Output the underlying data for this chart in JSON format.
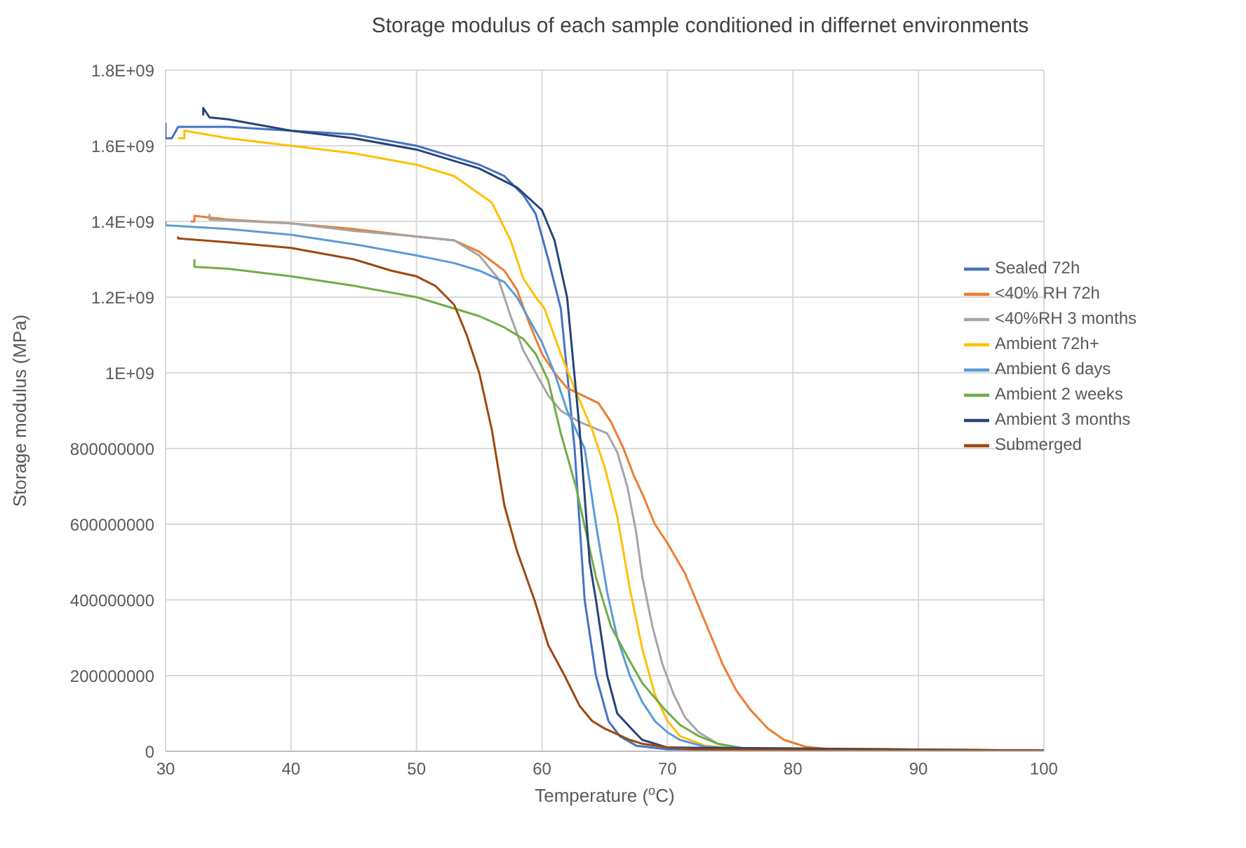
{
  "chart_data": {
    "type": "line",
    "title": "Storage modulus of each sample conditioned in differnet environments",
    "xlabel": "Temperature ($^{o}$C)",
    "ylabel": "Storage modulus (MPa)",
    "xlim": [
      30,
      100
    ],
    "xticks": [
      30,
      40,
      50,
      60,
      70,
      80,
      90,
      100
    ],
    "ylim": [
      0,
      1800000000.0
    ],
    "yticks": [
      0,
      200000000,
      400000000,
      600000000,
      800000000,
      {
        "value": 1000000000.0,
        "label": "1E+09"
      },
      {
        "value": 1200000000.0,
        "label": "1.2E+09"
      },
      {
        "value": 1400000000.0,
        "label": "1.4E+09"
      },
      {
        "value": 1600000000.0,
        "label": "1.6E+09"
      },
      {
        "value": 1800000000.0,
        "label": "1.8E+09"
      }
    ],
    "grid": true,
    "legend": "right",
    "marker": "none",
    "line_style": "solid",
    "series": [
      {
        "name": "Sealed 72h",
        "color": "#4472c4",
        "x": [
          30,
          30,
          30.5,
          31,
          35,
          40,
          45,
          50,
          55,
          57,
          58.5,
          59.5,
          60.5,
          61.5,
          62.6,
          63.4,
          64.3,
          65.3,
          66.2,
          67.5,
          70,
          100
        ],
        "values": [
          1660000000.0,
          1620000000.0,
          1620000000.0,
          1650000000.0,
          1650000000.0,
          1640000000.0,
          1630000000.0,
          1600000000.0,
          1550000000.0,
          1520000000.0,
          1470000000.0,
          1420000000.0,
          1300000000.0,
          1170000000.0,
          800000000.0,
          400000000.0,
          200000000.0,
          80000000.0,
          40000000.0,
          15000000.0,
          5000000.0,
          2000000.0
        ]
      },
      {
        "name": "<40% RH 72h",
        "color": "#ed7d31",
        "x": [
          32,
          32.3,
          32.3,
          35,
          40,
          45,
          50,
          53,
          55,
          57,
          58,
          59,
          60,
          61,
          62,
          64.5,
          65.5,
          66.5,
          67.3,
          68,
          69,
          70,
          71.4,
          72.9,
          74.4,
          75.5,
          76.6,
          78,
          79.3,
          81,
          83,
          100
        ],
        "values": [
          1400000000.0,
          1400000000.0,
          1415000000.0,
          1405000000.0,
          1395000000.0,
          1380000000.0,
          1360000000.0,
          1350000000.0,
          1320000000.0,
          1270000000.0,
          1220000000.0,
          1130000000.0,
          1050000000.0,
          1000000000.0,
          960000000.0,
          920000000.0,
          870000000.0,
          800000000.0,
          730000000.0,
          680000000.0,
          600000000.0,
          550000000.0,
          470000000.0,
          350000000.0,
          230000000.0,
          160000000.0,
          110000000.0,
          60000000.0,
          30000000.0,
          12000000.0,
          5000000.0,
          2000000.0
        ]
      },
      {
        "name": "<40%RH 3 months",
        "color": "#a5a5a5",
        "x": [
          33.5,
          33.5,
          40,
          45,
          50,
          53,
          55,
          56.5,
          57.5,
          58.5,
          59.5,
          60.5,
          61.5,
          63,
          65.2,
          66,
          66.8,
          67.5,
          68,
          68.8,
          69.6,
          70.5,
          71.4,
          72.5,
          74,
          76,
          100
        ],
        "values": [
          1420000000.0,
          1405000000.0,
          1395000000.0,
          1375000000.0,
          1360000000.0,
          1350000000.0,
          1310000000.0,
          1250000000.0,
          1150000000.0,
          1060000000.0,
          1000000000.0,
          940000000.0,
          900000000.0,
          870000000.0,
          840000000.0,
          790000000.0,
          700000000.0,
          580000000.0,
          460000000.0,
          330000000.0,
          230000000.0,
          150000000.0,
          90000000.0,
          50000000.0,
          20000000.0,
          8000000.0,
          2000000.0
        ]
      },
      {
        "name": "Ambient 72h+",
        "color": "#ffc000",
        "x": [
          31,
          31.5,
          31.5,
          35,
          40,
          45,
          50,
          53,
          56,
          57.5,
          58.5,
          59.5,
          60.2,
          61.5,
          62.7,
          64,
          65,
          66,
          67,
          68,
          69,
          70,
          71,
          73,
          76,
          100
        ],
        "values": [
          1620000000.0,
          1620000000.0,
          1640000000.0,
          1620000000.0,
          1600000000.0,
          1580000000.0,
          1550000000.0,
          1520000000.0,
          1450000000.0,
          1350000000.0,
          1250000000.0,
          1200000000.0,
          1170000000.0,
          1050000000.0,
          950000000.0,
          850000000.0,
          750000000.0,
          620000000.0,
          430000000.0,
          270000000.0,
          150000000.0,
          80000000.0,
          40000000.0,
          15000000.0,
          5000000.0,
          2000000.0
        ]
      },
      {
        "name": "Ambient 6 days",
        "color": "#5b9bd5",
        "x": [
          30,
          30,
          35,
          40,
          45,
          50,
          53,
          55,
          57,
          58,
          59,
          60,
          61,
          62,
          63.4,
          64.3,
          65.2,
          66,
          67,
          68,
          69,
          70,
          71,
          73,
          76,
          100
        ],
        "values": [
          1400000000.0,
          1390000000.0,
          1380000000.0,
          1365000000.0,
          1340000000.0,
          1310000000.0,
          1290000000.0,
          1270000000.0,
          1240000000.0,
          1200000000.0,
          1140000000.0,
          1080000000.0,
          1000000000.0,
          900000000.0,
          800000000.0,
          600000000.0,
          420000000.0,
          300000000.0,
          200000000.0,
          130000000.0,
          80000000.0,
          50000000.0,
          30000000.0,
          12000000.0,
          4000000.0,
          2000000.0
        ]
      },
      {
        "name": "Ambient 2 weeks",
        "color": "#70ad47",
        "x": [
          32.3,
          32.3,
          35,
          40,
          45,
          50,
          55,
          57,
          58.5,
          59.5,
          60.5,
          61.5,
          62.7,
          64.3,
          65.5,
          66.8,
          68,
          69.8,
          71,
          72.5,
          74,
          76,
          100
        ],
        "values": [
          1300000000.0,
          1280000000.0,
          1275000000.0,
          1255000000.0,
          1230000000.0,
          1200000000.0,
          1150000000.0,
          1120000000.0,
          1090000000.0,
          1050000000.0,
          980000000.0,
          840000000.0,
          700000000.0,
          460000000.0,
          330000000.0,
          250000000.0,
          180000000.0,
          110000000.0,
          70000000.0,
          40000000.0,
          20000000.0,
          8000000.0,
          2000000.0
        ]
      },
      {
        "name": "Ambient 3 months",
        "color": "#264478",
        "x": [
          33,
          33,
          33.5,
          35,
          40,
          45,
          50,
          55,
          58,
          60,
          61,
          62,
          63,
          63.8,
          64.3,
          65.2,
          66,
          67.4,
          68,
          70,
          100
        ],
        "values": [
          1680000000.0,
          1700000000.0,
          1675000000.0,
          1670000000.0,
          1640000000.0,
          1620000000.0,
          1590000000.0,
          1540000000.0,
          1490000000.0,
          1430000000.0,
          1350000000.0,
          1200000000.0,
          850000000.0,
          500000000.0,
          400000000.0,
          200000000.0,
          100000000.0,
          50000000.0,
          30000000.0,
          10000000.0,
          2000000.0
        ]
      },
      {
        "name": "Submerged",
        "color": "#9e480e",
        "x": [
          31,
          31,
          35,
          40,
          45,
          48,
          50,
          51.5,
          53,
          54,
          55,
          56,
          57,
          58,
          59.4,
          60.5,
          61.8,
          63,
          64,
          65,
          66,
          67,
          68,
          70,
          72,
          100
        ],
        "values": [
          1360000000.0,
          1355000000.0,
          1345000000.0,
          1330000000.0,
          1300000000.0,
          1270000000.0,
          1255000000.0,
          1230000000.0,
          1180000000.0,
          1100000000.0,
          1000000000.0,
          850000000.0,
          650000000.0,
          530000000.0,
          400000000.0,
          280000000.0,
          200000000.0,
          120000000.0,
          80000000.0,
          60000000.0,
          45000000.0,
          30000000.0,
          20000000.0,
          10000000.0,
          5000000.0,
          2000000.0
        ]
      }
    ]
  }
}
